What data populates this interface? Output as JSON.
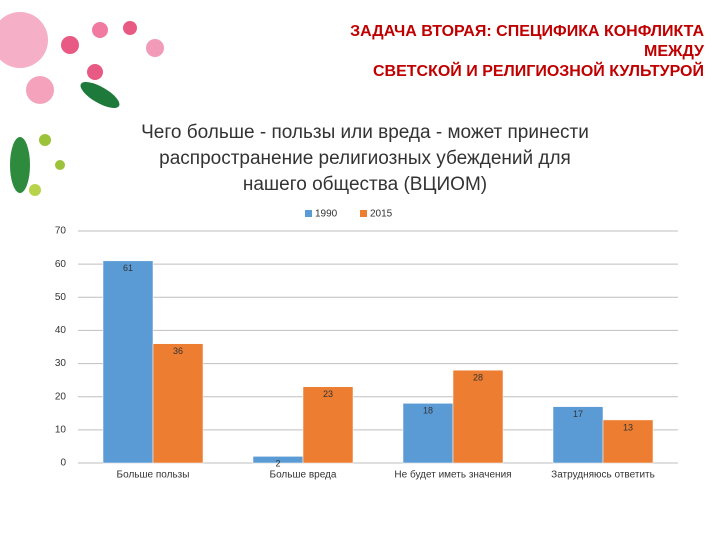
{
  "slide_title": [
    "ЗАДАЧА ВТОРАЯ: СПЕЦИФИКА КОНФЛИКТА",
    "МЕЖДУ",
    "СВЕТСКОЙ И РЕЛИГИОЗНОЙ КУЛЬТУРОЙ"
  ],
  "chart_data": {
    "type": "bar",
    "title": "Чего больше - пользы или вреда - может принести распространение религиозных убеждений для нашего общества (ВЦИОМ)",
    "categories": [
      "Больше пользы",
      "Больше вреда",
      "Не будет иметь значения",
      "Затрудняюсь ответить"
    ],
    "series": [
      {
        "name": "1990",
        "color": "#5b9bd5",
        "values": [
          61,
          2,
          18,
          17
        ]
      },
      {
        "name": "2015",
        "color": "#ed7d31",
        "values": [
          36,
          23,
          28,
          13
        ]
      }
    ],
    "ylim": [
      0,
      70
    ],
    "yticks": [
      0,
      10,
      20,
      30,
      40,
      50,
      60,
      70
    ],
    "grid": true,
    "legend": "top"
  }
}
